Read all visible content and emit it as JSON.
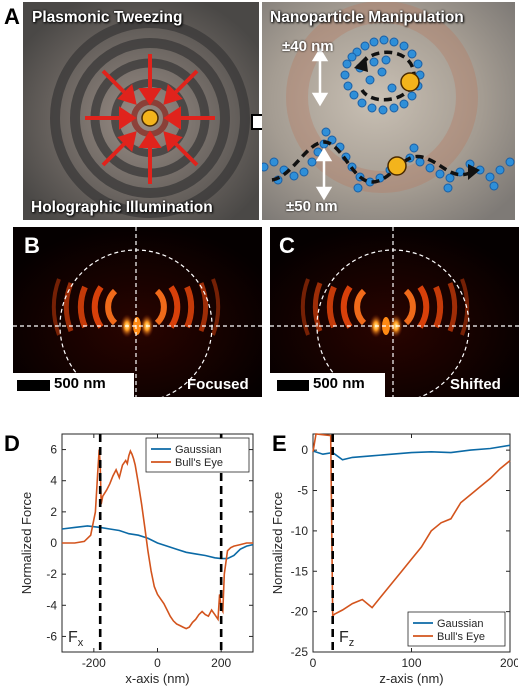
{
  "panel_a": {
    "letter": "A",
    "title_left": "Plasmonic Tweezing",
    "title_right": "Nanoparticle Manipulation",
    "caption_bottom": "Holographic Illumination",
    "range_top": "±40 nm",
    "range_bottom": "±50 nm"
  },
  "panel_b": {
    "letter": "B",
    "scale_label": "500 nm",
    "state_label": "Focused"
  },
  "panel_c": {
    "letter": "C",
    "scale_label": "500 nm",
    "state_label": "Shifted"
  },
  "chart_data": [
    {
      "panel": "D",
      "type": "line",
      "ylabel": "Normalized Force",
      "xlabel": "x-axis (nm)",
      "annotation": "Fx",
      "xlim": [
        -300,
        300
      ],
      "ylim": [
        -7,
        7
      ],
      "xticks": [
        "-200",
        "0",
        "200"
      ],
      "yticks": [
        "6",
        "4",
        "2",
        "0",
        "-2",
        "-4",
        "-6"
      ],
      "xtick_values": [
        -200,
        0,
        200
      ],
      "ytick_values": [
        6,
        4,
        2,
        0,
        -2,
        -4,
        -6
      ],
      "legend": {
        "placement": "top-right",
        "entries": [
          "Gaussian",
          "Bull's Eye"
        ]
      },
      "vlines": [
        -180,
        200
      ],
      "series": [
        {
          "name": "Gaussian",
          "color": "#0b6aa6",
          "x": [
            -300,
            -260,
            -220,
            -180,
            -150,
            -120,
            -90,
            -60,
            -30,
            0,
            30,
            60,
            90,
            120,
            150,
            180,
            200,
            220,
            240,
            260,
            280,
            300
          ],
          "y": [
            0.9,
            1.0,
            1.1,
            1.0,
            0.9,
            0.8,
            0.6,
            0.5,
            0.3,
            0.0,
            -0.2,
            -0.4,
            -0.6,
            -0.7,
            -0.8,
            -0.95,
            -1.0,
            -1.0,
            -0.8,
            -0.4,
            -0.2,
            -0.1
          ]
        },
        {
          "name": "Bull's Eye",
          "color": "#d3541d",
          "x": [
            -300,
            -260,
            -230,
            -210,
            -195,
            -188,
            -183,
            -180,
            -177,
            -172,
            -160,
            -150,
            -140,
            -130,
            -120,
            -110,
            -100,
            -95,
            -90,
            -85,
            -80,
            -75,
            -70,
            -60,
            -50,
            -40,
            -30,
            -20,
            -10,
            0,
            10,
            20,
            30,
            40,
            50,
            60,
            70,
            80,
            90,
            100,
            110,
            120,
            130,
            140,
            150,
            160,
            170,
            180,
            190,
            195,
            200,
            205,
            210,
            220,
            230,
            240,
            260,
            280,
            300
          ],
          "y": [
            0.0,
            0.0,
            0.1,
            0.5,
            2.0,
            4.5,
            6.0,
            5.0,
            2.5,
            3.0,
            3.4,
            3.8,
            4.3,
            4.7,
            4.2,
            5.0,
            5.3,
            5.1,
            5.6,
            5.9,
            5.7,
            5.4,
            5.0,
            3.8,
            2.5,
            1.0,
            -0.5,
            -1.8,
            -2.8,
            -3.3,
            -3.6,
            -3.9,
            -4.3,
            -4.7,
            -5.0,
            -5.2,
            -5.3,
            -5.4,
            -5.5,
            -5.4,
            -5.1,
            -4.9,
            -4.6,
            -4.4,
            -4.6,
            -4.7,
            -4.3,
            -4.6,
            -4.9,
            -3.3,
            -4.2,
            -4.4,
            -2.0,
            -0.5,
            -0.3,
            -0.2,
            -0.1,
            0.0,
            0.0
          ]
        }
      ]
    },
    {
      "panel": "E",
      "type": "line",
      "ylabel": "Normalized Force",
      "xlabel": "z-axis (nm)",
      "annotation": "Fz",
      "xlim": [
        0,
        200
      ],
      "ylim": [
        -25,
        2
      ],
      "xticks": [
        "0",
        "100",
        "200"
      ],
      "yticks": [
        "0",
        "-5",
        "-10",
        "-15",
        "-20",
        "-25"
      ],
      "xtick_values": [
        0,
        100,
        200
      ],
      "ytick_values": [
        0,
        -5,
        -10,
        -15,
        -20,
        -25
      ],
      "legend": {
        "placement": "bottom-right",
        "entries": [
          "Gaussian",
          "Bull's Eye"
        ]
      },
      "vlines": [
        20
      ],
      "series": [
        {
          "name": "Gaussian",
          "color": "#0b6aa6",
          "x": [
            0,
            10,
            20,
            30,
            40,
            60,
            80,
            100,
            120,
            140,
            160,
            180,
            200
          ],
          "y": [
            -0.1,
            -0.5,
            -0.3,
            -1.2,
            -0.9,
            -0.7,
            -0.5,
            -0.3,
            -0.2,
            -0.3,
            0.0,
            0.2,
            0.6
          ]
        },
        {
          "name": "Bull's Eye",
          "color": "#d3541d",
          "x": [
            0,
            3,
            18,
            20,
            22,
            30,
            40,
            50,
            60,
            70,
            80,
            90,
            100,
            110,
            120,
            130,
            140,
            150,
            160,
            170,
            180,
            190,
            200
          ],
          "y": [
            -0.2,
            2.0,
            1.8,
            -20.5,
            -20.3,
            -19.8,
            -19.0,
            -18.5,
            -19.5,
            -18.0,
            -16.5,
            -15.0,
            -13.5,
            -12.0,
            -10.0,
            -9.0,
            -8.5,
            -6.5,
            -5.5,
            -4.5,
            -3.5,
            -2.3,
            -1.3
          ]
        }
      ]
    }
  ]
}
